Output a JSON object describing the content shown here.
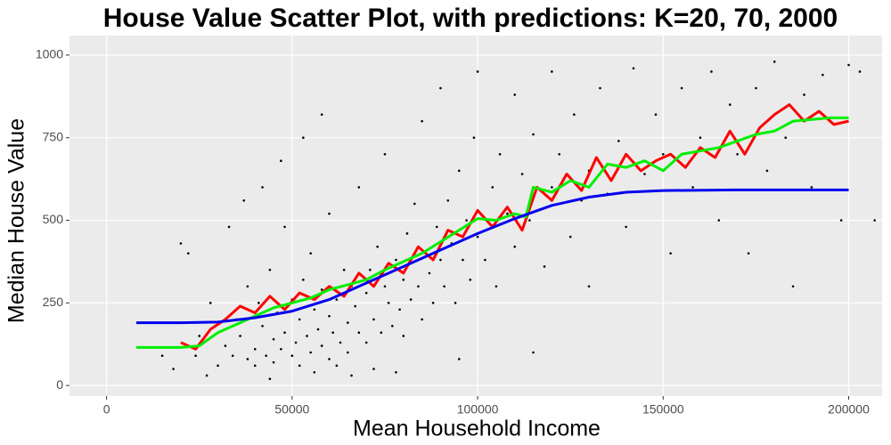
{
  "chart_data": {
    "type": "scatter",
    "title": "House Value Scatter Plot, with predictions: K=20, 70, 2000",
    "x_label": "Mean Household Income",
    "y_label": "Median House Value",
    "xlim": [
      -10000,
      209000
    ],
    "ylim": [
      -32,
      1059
    ],
    "xticks": [
      0,
      50000,
      100000,
      150000,
      200000
    ],
    "yticks": [
      0,
      250,
      500,
      750,
      1000
    ],
    "grid": true,
    "series": [
      {
        "type": "scatter",
        "color": "#000000",
        "x": [
          30000,
          32000,
          34000,
          35000,
          36000,
          38000,
          38000,
          40000,
          40000,
          41000,
          42000,
          43000,
          44000,
          45000,
          45000,
          46000,
          47000,
          48000,
          48000,
          50000,
          50000,
          51000,
          52000,
          52000,
          53000,
          54000,
          55000,
          55000,
          56000,
          57000,
          58000,
          58000,
          60000,
          60000,
          60000,
          61000,
          62000,
          63000,
          64000,
          65000,
          65000,
          66000,
          67000,
          68000,
          68000,
          70000,
          70000,
          71000,
          72000,
          73000,
          74000,
          75000,
          75000,
          76000,
          77000,
          78000,
          79000,
          80000,
          80000,
          81000,
          82000,
          83000,
          84000,
          85000,
          85000,
          86000,
          87000,
          88000,
          89000,
          90000,
          90000,
          91000,
          92000,
          93000,
          94000,
          95000,
          96000,
          97000,
          98000,
          99000,
          100000,
          100000,
          102000,
          104000,
          105000,
          106000,
          108000,
          110000,
          110000,
          112000,
          114000,
          115000,
          118000,
          120000,
          120000,
          122000,
          125000,
          126000,
          128000,
          130000,
          130000,
          133000,
          135000,
          138000,
          140000,
          142000,
          145000,
          148000,
          150000,
          152000,
          155000,
          158000,
          160000,
          163000,
          165000,
          168000,
          170000,
          173000,
          175000,
          178000,
          180000,
          183000,
          185000,
          188000,
          190000,
          193000,
          195000,
          198000,
          200000,
          203000,
          207000,
          22000,
          25000,
          18000,
          20000,
          15000,
          28000,
          33000,
          37000,
          42000,
          47000,
          53000,
          58000,
          62000,
          72000,
          95000,
          115000,
          24000,
          27000,
          44000,
          56000,
          66000,
          78000
        ],
        "values": [
          60,
          120,
          90,
          200,
          150,
          80,
          300,
          110,
          60,
          250,
          180,
          90,
          350,
          140,
          70,
          220,
          110,
          480,
          160,
          90,
          260,
          130,
          200,
          60,
          320,
          150,
          100,
          400,
          230,
          170,
          120,
          290,
          80,
          210,
          520,
          160,
          260,
          130,
          350,
          190,
          100,
          300,
          240,
          160,
          600,
          280,
          130,
          350,
          200,
          420,
          160,
          300,
          700,
          250,
          180,
          380,
          230,
          320,
          150,
          460,
          260,
          550,
          300,
          200,
          800,
          400,
          340,
          250,
          480,
          380,
          900,
          300,
          560,
          430,
          250,
          650,
          380,
          500,
          320,
          750,
          450,
          950,
          380,
          600,
          300,
          700,
          520,
          420,
          880,
          640,
          500,
          760,
          360,
          600,
          950,
          700,
          450,
          820,
          560,
          650,
          300,
          900,
          580,
          740,
          480,
          960,
          640,
          820,
          700,
          400,
          900,
          600,
          750,
          950,
          500,
          850,
          700,
          400,
          900,
          650,
          980,
          750,
          300,
          880,
          600,
          940,
          800,
          500,
          970,
          950,
          500,
          400,
          150,
          50,
          430,
          90,
          250,
          480,
          560,
          600,
          680,
          750,
          820,
          60,
          50,
          80,
          100,
          90,
          30,
          20,
          40,
          30,
          40
        ]
      },
      {
        "type": "line",
        "color": "#ff0000",
        "x": [
          20000,
          24000,
          28000,
          32000,
          36000,
          40000,
          44000,
          48000,
          52000,
          56000,
          60000,
          64000,
          68000,
          72000,
          76000,
          80000,
          84000,
          88000,
          92000,
          96000,
          100000,
          104000,
          108000,
          112000,
          116000,
          120000,
          124000,
          128000,
          132000,
          136000,
          140000,
          144000,
          148000,
          152000,
          156000,
          160000,
          164000,
          168000,
          172000,
          176000,
          180000,
          184000,
          188000,
          192000,
          196000,
          200000
        ],
        "values": [
          130,
          110,
          170,
          200,
          240,
          220,
          270,
          230,
          280,
          260,
          300,
          270,
          340,
          300,
          370,
          340,
          420,
          380,
          470,
          450,
          530,
          480,
          540,
          470,
          600,
          560,
          640,
          590,
          690,
          620,
          700,
          650,
          680,
          700,
          660,
          720,
          690,
          770,
          700,
          780,
          820,
          850,
          800,
          830,
          790,
          800
        ]
      },
      {
        "type": "line",
        "color": "#00ee00",
        "x": [
          8000,
          20000,
          25000,
          30000,
          35000,
          40000,
          45000,
          50000,
          55000,
          60000,
          65000,
          70000,
          75000,
          80000,
          85000,
          90000,
          95000,
          100000,
          105000,
          110000,
          113000,
          115000,
          120000,
          125000,
          130000,
          135000,
          140000,
          145000,
          150000,
          155000,
          160000,
          165000,
          170000,
          175000,
          180000,
          185000,
          190000,
          195000,
          200000
        ],
        "values": [
          115,
          115,
          120,
          160,
          185,
          210,
          235,
          250,
          265,
          290,
          305,
          320,
          350,
          375,
          400,
          435,
          470,
          505,
          500,
          520,
          510,
          600,
          585,
          620,
          600,
          670,
          660,
          680,
          650,
          700,
          710,
          720,
          740,
          760,
          770,
          800,
          805,
          810,
          810
        ]
      },
      {
        "type": "line",
        "color": "#0000ee",
        "x": [
          8000,
          20000,
          30000,
          40000,
          50000,
          60000,
          70000,
          80000,
          90000,
          100000,
          110000,
          120000,
          130000,
          140000,
          150000,
          170000,
          200000
        ],
        "values": [
          190,
          190,
          192,
          205,
          225,
          260,
          310,
          360,
          410,
          460,
          505,
          545,
          570,
          585,
          590,
          592,
          592
        ]
      }
    ]
  }
}
